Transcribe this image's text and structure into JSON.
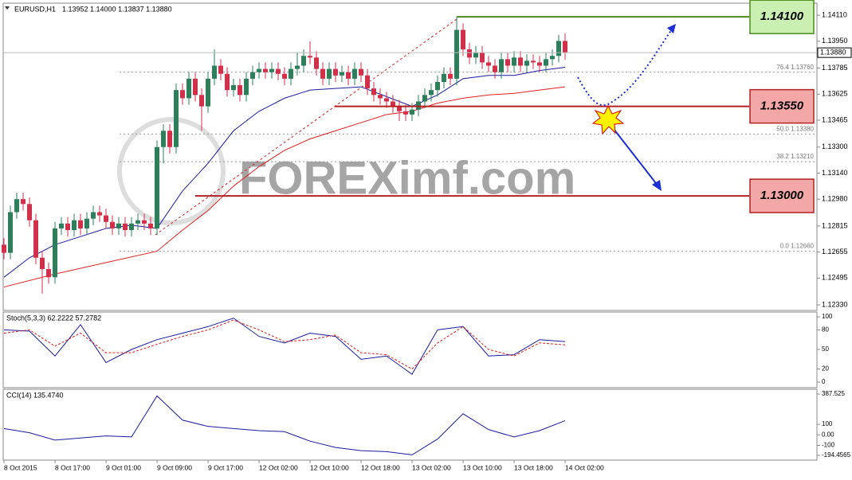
{
  "chart_data": {
    "type": "candlestick",
    "symbol": "EURUSD,H1",
    "header_prices": "1.13952 1.14000 1.13837 1.13880",
    "watermark": "FOREXimf.com",
    "up_color": "#2e7d5b",
    "down_color": "#d0304a",
    "xlim": [
      0,
      127.5
    ],
    "xticks": [
      {
        "value": 0,
        "label": "8 Oct 2015"
      },
      {
        "value": 8,
        "label": "8 Oct 17:00"
      },
      {
        "value": 16,
        "label": "9 Oct 01:00"
      },
      {
        "value": 24,
        "label": "9 Oct 09:00"
      },
      {
        "value": 32,
        "label": "9 Oct 17:00"
      },
      {
        "value": 40,
        "label": "12 Oct 02:00"
      },
      {
        "value": 48,
        "label": "12 Oct 10:00"
      },
      {
        "value": 56,
        "label": "12 Oct 18:00"
      },
      {
        "value": 64,
        "label": "13 Oct 02:00"
      },
      {
        "value": 72,
        "label": "13 Oct 10:00"
      },
      {
        "value": 80,
        "label": "13 Oct 18:00"
      },
      {
        "value": 88,
        "label": "14 Oct 02:00"
      }
    ],
    "ylim": [
      1.12296,
      1.14184
    ],
    "yticks": [
      {
        "value": 1.1411,
        "label": "1.14110"
      },
      {
        "value": 1.1395,
        "label": "1.13950"
      },
      1.13785,
      1.13625,
      1.13465,
      {
        "value": 1.133,
        "label": "1.13300"
      },
      {
        "value": 1.1314,
        "label": "1.13140"
      },
      {
        "value": 1.1298,
        "label": "1.12980"
      },
      1.12815,
      1.12655,
      1.12495,
      {
        "value": 1.1233,
        "label": "1.12330"
      }
    ],
    "current_price": {
      "value": 1.1388,
      "label": "1.13880"
    },
    "candles": [
      [
        1.127,
        1.1274,
        1.1261,
        1.1265
      ],
      [
        1.1265,
        1.1294,
        1.1261,
        1.129
      ],
      [
        1.129,
        1.1302,
        1.1286,
        1.1298
      ],
      [
        1.1298,
        1.1302,
        1.1291,
        1.1295
      ],
      [
        1.1295,
        1.1299,
        1.1281,
        1.1285
      ],
      [
        1.1285,
        1.1289,
        1.1258,
        1.1262
      ],
      [
        1.1262,
        1.1266,
        1.124,
        1.1255
      ],
      [
        1.1255,
        1.1259,
        1.1246,
        1.125
      ],
      [
        1.125,
        1.1284,
        1.1246,
        1.128
      ],
      [
        1.128,
        1.1287,
        1.1276,
        1.1283
      ],
      [
        1.1283,
        1.1287,
        1.1275,
        1.1279
      ],
      [
        1.1279,
        1.1289,
        1.1275,
        1.1285
      ],
      [
        1.1285,
        1.1289,
        1.1276,
        1.128
      ],
      [
        1.128,
        1.129,
        1.1276,
        1.1286
      ],
      [
        1.1286,
        1.1294,
        1.1282,
        1.129
      ],
      [
        1.129,
        1.1294,
        1.1284,
        1.1288
      ],
      [
        1.1288,
        1.1292,
        1.128,
        1.1284
      ],
      [
        1.1284,
        1.1288,
        1.1276,
        1.128
      ],
      [
        1.128,
        1.1287,
        1.1276,
        1.1283
      ],
      [
        1.1283,
        1.1287,
        1.1275,
        1.1279
      ],
      [
        1.1279,
        1.1287,
        1.1275,
        1.1283
      ],
      [
        1.1283,
        1.1289,
        1.1279,
        1.1285
      ],
      [
        1.1285,
        1.1289,
        1.1279,
        1.1283
      ],
      [
        1.1283,
        1.1287,
        1.1276,
        1.128
      ],
      [
        1.128,
        1.1334,
        1.1276,
        1.133
      ],
      [
        1.133,
        1.1344,
        1.132,
        1.134
      ],
      [
        1.134,
        1.1344,
        1.1326,
        1.133
      ],
      [
        1.133,
        1.1369,
        1.1326,
        1.1365
      ],
      [
        1.1365,
        1.1369,
        1.1356,
        1.136
      ],
      [
        1.136,
        1.1376,
        1.1356,
        1.1372
      ],
      [
        1.1372,
        1.1376,
        1.1358,
        1.1362
      ],
      [
        1.1362,
        1.1366,
        1.134,
        1.1355
      ],
      [
        1.1355,
        1.1376,
        1.1351,
        1.1372
      ],
      [
        1.1372,
        1.139,
        1.1368,
        1.138
      ],
      [
        1.138,
        1.1384,
        1.1371,
        1.1375
      ],
      [
        1.1375,
        1.1379,
        1.1361,
        1.1365
      ],
      [
        1.1365,
        1.1372,
        1.1361,
        1.1368
      ],
      [
        1.1368,
        1.1372,
        1.1358,
        1.1362
      ],
      [
        1.1362,
        1.1376,
        1.1358,
        1.1372
      ],
      [
        1.1372,
        1.138,
        1.1368,
        1.1376
      ],
      [
        1.1376,
        1.1382,
        1.1372,
        1.1378
      ],
      [
        1.1378,
        1.1382,
        1.1372,
        1.1376
      ],
      [
        1.1376,
        1.1382,
        1.1372,
        1.1378
      ],
      [
        1.1378,
        1.1382,
        1.1371,
        1.1375
      ],
      [
        1.1375,
        1.1379,
        1.1368,
        1.1372
      ],
      [
        1.1372,
        1.1382,
        1.1368,
        1.1378
      ],
      [
        1.1378,
        1.1388,
        1.1374,
        1.138
      ],
      [
        1.138,
        1.139,
        1.1376,
        1.1386
      ],
      [
        1.1386,
        1.1395,
        1.1381,
        1.1385
      ],
      [
        1.1385,
        1.1389,
        1.1374,
        1.1378
      ],
      [
        1.1378,
        1.1382,
        1.1368,
        1.1372
      ],
      [
        1.1372,
        1.1382,
        1.1368,
        1.1378
      ],
      [
        1.1378,
        1.1382,
        1.137,
        1.1374
      ],
      [
        1.1374,
        1.138,
        1.137,
        1.1376
      ],
      [
        1.1376,
        1.138,
        1.1368,
        1.1372
      ],
      [
        1.1372,
        1.1382,
        1.1368,
        1.1378
      ],
      [
        1.1378,
        1.1382,
        1.137,
        1.1374
      ],
      [
        1.1374,
        1.1378,
        1.1362,
        1.1366
      ],
      [
        1.1366,
        1.137,
        1.1358,
        1.1362
      ],
      [
        1.1362,
        1.1366,
        1.1356,
        1.136
      ],
      [
        1.136,
        1.1364,
        1.1354,
        1.1358
      ],
      [
        1.1358,
        1.1362,
        1.1351,
        1.1355
      ],
      [
        1.1355,
        1.1359,
        1.1346,
        1.1352
      ],
      [
        1.1352,
        1.1356,
        1.1346,
        1.135
      ],
      [
        1.135,
        1.1357,
        1.1346,
        1.1353
      ],
      [
        1.1353,
        1.1362,
        1.1349,
        1.1358
      ],
      [
        1.1358,
        1.1366,
        1.1354,
        1.1362
      ],
      [
        1.1362,
        1.1369,
        1.1358,
        1.1365
      ],
      [
        1.1365,
        1.1374,
        1.1361,
        1.137
      ],
      [
        1.137,
        1.1379,
        1.1366,
        1.1375
      ],
      [
        1.1375,
        1.1379,
        1.1368,
        1.1372
      ],
      [
        1.1372,
        1.141,
        1.1368,
        1.1402
      ],
      [
        1.1402,
        1.1406,
        1.1386,
        1.139
      ],
      [
        1.139,
        1.1394,
        1.1381,
        1.1385
      ],
      [
        1.1385,
        1.1392,
        1.1381,
        1.1388
      ],
      [
        1.1388,
        1.1392,
        1.1378,
        1.1382
      ],
      [
        1.1382,
        1.1386,
        1.1376,
        1.138
      ],
      [
        1.138,
        1.1384,
        1.1372,
        1.1376
      ],
      [
        1.1376,
        1.1388,
        1.1372,
        1.1384
      ],
      [
        1.1384,
        1.1388,
        1.1376,
        1.138
      ],
      [
        1.138,
        1.1389,
        1.1376,
        1.1385
      ],
      [
        1.1385,
        1.1389,
        1.1376,
        1.138
      ],
      [
        1.138,
        1.1387,
        1.1376,
        1.1383
      ],
      [
        1.1383,
        1.1387,
        1.1378,
        1.1382
      ],
      [
        1.1382,
        1.1386,
        1.1376,
        1.138
      ],
      [
        1.138,
        1.1388,
        1.1376,
        1.1384
      ],
      [
        1.1384,
        1.139,
        1.138,
        1.1386
      ],
      [
        1.1386,
        1.1399,
        1.1382,
        1.13952
      ],
      [
        1.13952,
        1.14,
        1.13837,
        1.1388
      ]
    ],
    "moving_averages": [
      {
        "color": "#1a1aa0",
        "x": [
          0,
          4,
          8,
          12,
          16,
          20,
          24,
          28,
          32,
          36,
          40,
          44,
          48,
          52,
          56,
          60,
          64,
          68,
          72,
          76,
          80,
          84,
          88
        ],
        "values": [
          1.125,
          1.1262,
          1.127,
          1.1275,
          1.128,
          1.1282,
          1.128,
          1.1303,
          1.132,
          1.134,
          1.1352,
          1.136,
          1.1365,
          1.1366,
          1.1367,
          1.1361,
          1.1355,
          1.1362,
          1.1372,
          1.1374,
          1.1374,
          1.1377,
          1.1379
        ]
      },
      {
        "color": "#e02020",
        "x": [
          0,
          8,
          16,
          24,
          28,
          32,
          36,
          40,
          44,
          48,
          52,
          56,
          60,
          64,
          68,
          72,
          76,
          80,
          84,
          88
        ],
        "values": [
          1.1244,
          1.1252,
          1.1259,
          1.1266,
          1.1279,
          1.1291,
          1.1306,
          1.1318,
          1.1328,
          1.1335,
          1.134,
          1.1345,
          1.135,
          1.1352,
          1.1357,
          1.136,
          1.1362,
          1.1363,
          1.1365,
          1.1367
        ]
      }
    ],
    "fib_levels": [
      {
        "value": 1.1376,
        "label": "76.4 1.13760"
      },
      {
        "value": 1.1338,
        "label": "50.0 1.13380"
      },
      {
        "value": 1.1321,
        "label": "38.2 1.13210"
      },
      {
        "value": 1.1266,
        "label": "0.0 1.12660"
      }
    ],
    "levels": [
      {
        "value": 1.141,
        "label": "1.14100",
        "color": "#4e8a1e",
        "box": "#c9f0b0"
      },
      {
        "value": 1.1355,
        "label": "1.13550",
        "color": "#b22222",
        "box": "#f4a7a7"
      },
      {
        "value": 1.13,
        "label": "1.13000",
        "color": "#b22222",
        "box": "#f4a7a7"
      }
    ],
    "indicators": [
      {
        "title": "Stoch(5,3,3) 62.2222 57.2782",
        "ylim": [
          -8.5,
          107.3
        ],
        "yticks": [
          100,
          80,
          50,
          20,
          0
        ],
        "series": [
          {
            "color": "#1a1aa0",
            "dash": false,
            "x": [
              0,
              4,
              8,
              12,
              16,
              20,
              24,
              28,
              32,
              36,
              40,
              44,
              48,
              52,
              56,
              60,
              64,
              68,
              72,
              76,
              80,
              84,
              88
            ],
            "values": [
              80,
              78,
              40,
              88,
              30,
              50,
              65,
              75,
              85,
              98,
              70,
              60,
              75,
              70,
              35,
              40,
              12,
              80,
              85,
              40,
              42,
              65,
              62
            ]
          },
          {
            "color": "#e02020",
            "dash": true,
            "x": [
              0,
              4,
              8,
              12,
              16,
              20,
              24,
              28,
              32,
              36,
              40,
              44,
              48,
              52,
              56,
              60,
              64,
              68,
              72,
              76,
              80,
              84,
              88
            ],
            "values": [
              75,
              80,
              55,
              75,
              45,
              45,
              58,
              70,
              80,
              95,
              80,
              62,
              65,
              72,
              45,
              42,
              20,
              60,
              85,
              50,
              40,
              60,
              57
            ]
          }
        ]
      },
      {
        "title": "CCI(14) 135.4740",
        "ylim": [
          -240,
          433
        ],
        "yticks": [
          387.525,
          100,
          {
            "value": 0,
            "label": "0.00"
          },
          -100,
          -194.4565
        ],
        "series": [
          {
            "color": "#1a1aa0",
            "dash": false,
            "x": [
              0,
              4,
              8,
              12,
              16,
              20,
              24,
              28,
              32,
              36,
              40,
              44,
              48,
              52,
              56,
              60,
              64,
              68,
              72,
              76,
              80,
              84,
              88
            ],
            "values": [
              60,
              20,
              -50,
              -30,
              -10,
              -20,
              370,
              140,
              80,
              60,
              40,
              30,
              -60,
              -120,
              -150,
              -160,
              -190,
              -40,
              200,
              50,
              -20,
              40,
              135
            ]
          }
        ]
      }
    ]
  }
}
